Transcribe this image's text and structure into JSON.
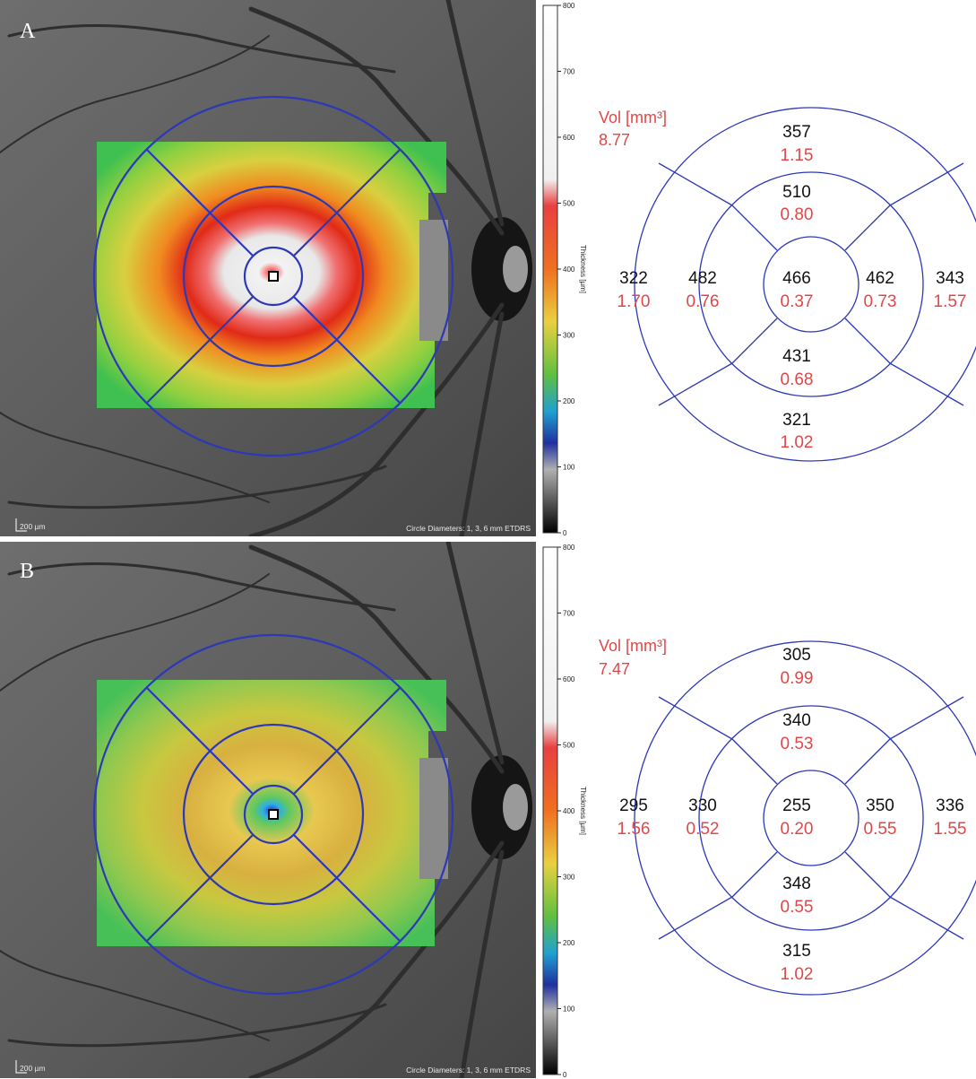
{
  "colors": {
    "grid": "#2d38b8",
    "thickness_text": "#111111",
    "volume_text": "#e04848",
    "fundus_bg": "#5a5a5a"
  },
  "colorbar": {
    "ticks": [
      "800",
      "700",
      "600",
      "500",
      "400",
      "300",
      "200",
      "100",
      "0"
    ],
    "axis_label": "Thickness [µm]"
  },
  "panels": [
    {
      "letter": "A",
      "scale_label": "200 µm",
      "circle_label": "Circle Diameters: 1, 3, 6 mm ETDRS",
      "map_style": "edema",
      "total_volume_label": "Vol [mm³]",
      "total_volume": "8.77",
      "sectors": {
        "outer_superior": {
          "thickness": "357",
          "volume": "1.15"
        },
        "inner_superior": {
          "thickness": "510",
          "volume": "0.80"
        },
        "outer_temporal": {
          "thickness": "322",
          "volume": "1.70"
        },
        "inner_temporal": {
          "thickness": "482",
          "volume": "0.76"
        },
        "center": {
          "thickness": "466",
          "volume": "0.37"
        },
        "inner_nasal": {
          "thickness": "462",
          "volume": "0.73"
        },
        "outer_nasal": {
          "thickness": "343",
          "volume": "1.57"
        },
        "inner_inferior": {
          "thickness": "431",
          "volume": "0.68"
        },
        "outer_inferior": {
          "thickness": "321",
          "volume": "1.02"
        }
      }
    },
    {
      "letter": "B",
      "scale_label": "200 µm",
      "circle_label": "Circle Diameters: 1, 3, 6 mm ETDRS",
      "map_style": "normal",
      "total_volume_label": "Vol [mm³]",
      "total_volume": "7.47",
      "sectors": {
        "outer_superior": {
          "thickness": "305",
          "volume": "0.99"
        },
        "inner_superior": {
          "thickness": "340",
          "volume": "0.53"
        },
        "outer_temporal": {
          "thickness": "295",
          "volume": "1.56"
        },
        "inner_temporal": {
          "thickness": "330",
          "volume": "0.52"
        },
        "center": {
          "thickness": "255",
          "volume": "0.20"
        },
        "inner_nasal": {
          "thickness": "350",
          "volume": "0.55"
        },
        "outer_nasal": {
          "thickness": "336",
          "volume": "1.55"
        },
        "inner_inferior": {
          "thickness": "348",
          "volume": "0.55"
        },
        "outer_inferior": {
          "thickness": "315",
          "volume": "1.02"
        }
      }
    }
  ]
}
